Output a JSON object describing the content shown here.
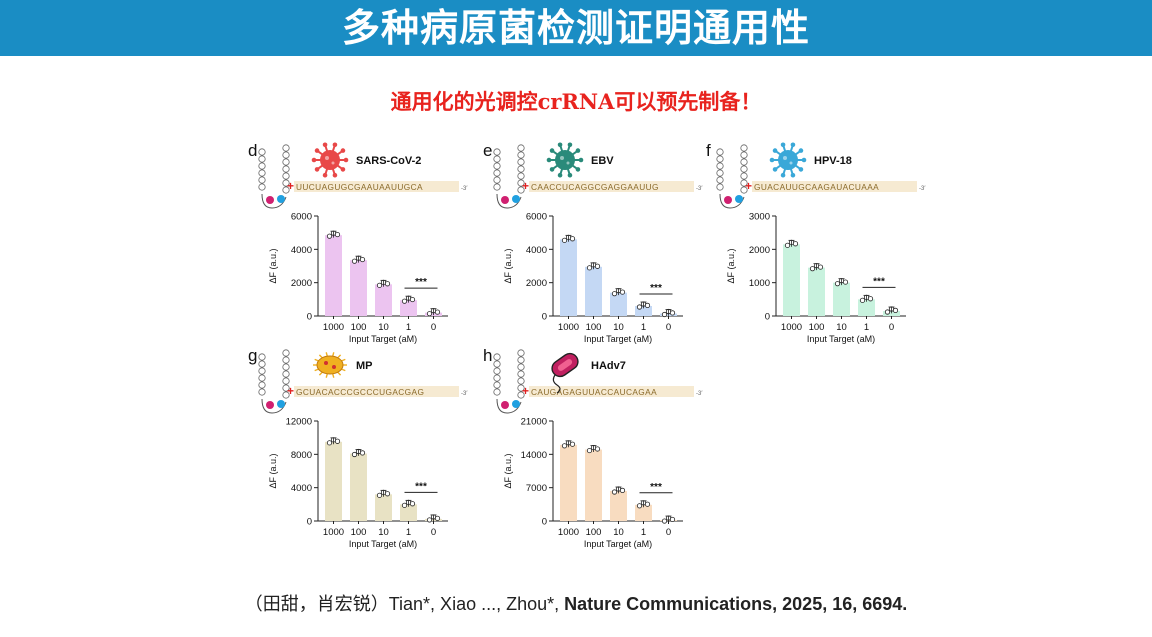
{
  "header": {
    "title": "多种病原菌检测证明通用性",
    "subtitle": "通用化的光调控crRNA可以预先制备！"
  },
  "citation": {
    "authors_cn": "（田甜，肖宏锐）",
    "authors_en": "Tian*, Xiao ..., Zhou*, ",
    "journal": "Nature Communications, 2025, 16, 6694."
  },
  "colors": {
    "banner": "#1a8dc4",
    "subtitle": "#e8231e"
  },
  "chart_data": [
    {
      "panel": "d",
      "type": "bar",
      "pathogen": "SARS-CoV-2",
      "sequence": "UUCUAGUGCGAAUAAUUGCA",
      "categories": [
        "1000",
        "100",
        "10",
        "1",
        "0"
      ],
      "values": [
        4850,
        3350,
        1900,
        950,
        200
      ],
      "ylim": [
        0,
        6000
      ],
      "yticks": [
        0,
        2000,
        4000,
        6000
      ],
      "ylabel": "ΔF (a.u.)",
      "xlabel": "Input Target (aM)",
      "significance": "***",
      "color": "#ecc4f0",
      "icon": "virus-icon",
      "icon_color": "#e84848"
    },
    {
      "panel": "e",
      "type": "bar",
      "pathogen": "EBV",
      "sequence": "CAACCUCAGGCGAGGAAUUG",
      "categories": [
        "1000",
        "100",
        "10",
        "1",
        "0"
      ],
      "values": [
        4600,
        2950,
        1400,
        600,
        150
      ],
      "ylim": [
        0,
        6000
      ],
      "yticks": [
        0,
        2000,
        4000,
        6000
      ],
      "ylabel": "ΔF (a.u.)",
      "xlabel": "Input Target (aM)",
      "significance": "***",
      "color": "#c4d8f4",
      "icon": "virus-icon",
      "icon_color": "#2a8a7a"
    },
    {
      "panel": "f",
      "type": "bar",
      "pathogen": "HPV-18",
      "sequence": "GUACAUUGCAAGAUACUAAA",
      "categories": [
        "1000",
        "100",
        "10",
        "1",
        "0"
      ],
      "values": [
        2150,
        1450,
        1000,
        500,
        150
      ],
      "ylim": [
        0,
        3000
      ],
      "yticks": [
        0,
        1000,
        2000,
        3000
      ],
      "ylabel": "ΔF (a.u.)",
      "xlabel": "Input Target (aM)",
      "significance": "***",
      "color": "#c8f2de",
      "icon": "virus-icon",
      "icon_color": "#3aa8d8"
    },
    {
      "panel": "g",
      "type": "bar",
      "pathogen": "MP",
      "sequence": "GCUACACCCGCCCUGACGAG",
      "categories": [
        "1000",
        "100",
        "10",
        "1",
        "0"
      ],
      "values": [
        9500,
        8100,
        3200,
        2000,
        250
      ],
      "ylim": [
        0,
        12000
      ],
      "yticks": [
        0,
        4000,
        8000,
        12000
      ],
      "ylabel": "ΔF (a.u.)",
      "xlabel": "Input Target (aM)",
      "significance": "***",
      "color": "#e8e2c4",
      "icon": "bacteria-icon",
      "icon_color": "#f0b020"
    },
    {
      "panel": "h",
      "type": "bar",
      "pathogen": "HAdv7",
      "sequence": "CAUGAGAGUUACCAUCAGAA",
      "categories": [
        "1000",
        "100",
        "10",
        "1",
        "0"
      ],
      "values": [
        16000,
        15000,
        6300,
        3400,
        200
      ],
      "ylim": [
        0,
        21000
      ],
      "yticks": [
        0,
        7000,
        14000,
        21000
      ],
      "ylabel": "ΔF (a.u.)",
      "xlabel": "Input Target (aM)",
      "significance": "***",
      "color": "#f8dcc0",
      "icon": "bacteria-icon",
      "icon_color": "#c02060"
    }
  ]
}
